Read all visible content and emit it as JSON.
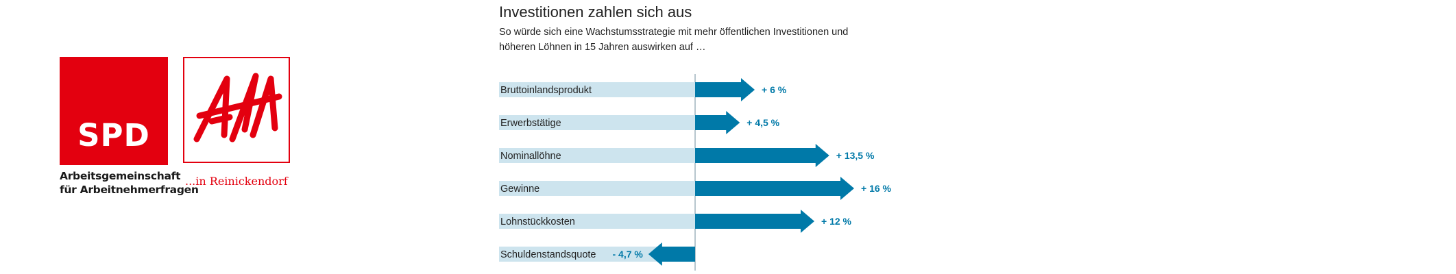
{
  "logos": {
    "spd_text": "SPD",
    "spd_subtitle_line1": "Arbeitsgemeinschaft",
    "spd_subtitle_line2": "für Arbeitnehmerfragen",
    "afa_text": "AfA",
    "afa_subtitle": "...in Reinickendorf",
    "brand_color": "#e3000f"
  },
  "chart_data": {
    "type": "bar",
    "orientation": "horizontal",
    "title": "Investitionen zahlen sich aus",
    "subtitle_line1": "So würde sich eine Wachstumsstrategie mit mehr öffentlichen Investitionen und",
    "subtitle_line2": "höheren Löhnen in 15 Jahren auswirken auf …",
    "unit": "%",
    "categories": [
      "Bruttoinlandsprodukt",
      "Erwerbstätige",
      "Nominallöhne",
      "Gewinne",
      "Lohnstückkosten",
      "Schuldenstandsquote"
    ],
    "values": [
      6,
      4.5,
      13.5,
      16,
      12,
      -4.7
    ],
    "value_labels": [
      "+ 6 %",
      "+ 4,5 %",
      "+ 13,5 %",
      "+ 16 %",
      "+ 12 %",
      "- 4,7 %"
    ],
    "bar_color": "#0079a8",
    "label_band_color": "#cde4ee",
    "grid": false
  }
}
